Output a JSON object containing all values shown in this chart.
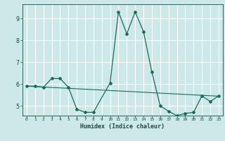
{
  "xlabel": "Humidex (Indice chaleur)",
  "bg_color": "#cce8e8",
  "grid_color": "#ffffff",
  "line_color": "#1a6b5a",
  "xlim": [
    -0.5,
    23.5
  ],
  "ylim": [
    4.55,
    9.65
  ],
  "yticks": [
    5,
    6,
    7,
    8,
    9
  ],
  "xticks": [
    0,
    1,
    2,
    3,
    4,
    5,
    6,
    7,
    8,
    9,
    10,
    11,
    12,
    13,
    14,
    15,
    16,
    17,
    18,
    19,
    20,
    21,
    22,
    23
  ],
  "xtick_labels": [
    "0",
    "1",
    "2",
    "3",
    "4",
    "5",
    "6",
    "7",
    "8",
    "9",
    "10",
    "11",
    "12",
    "13",
    "14",
    "15",
    "16",
    "17",
    "18",
    "19",
    "20",
    "21",
    "22",
    "23"
  ],
  "line1_x": [
    0,
    1,
    2,
    3,
    4,
    5,
    6,
    7,
    8,
    10,
    11,
    12,
    13,
    14,
    15,
    16,
    17,
    18,
    19,
    20,
    21,
    22,
    23
  ],
  "line1_y": [
    5.9,
    5.9,
    5.85,
    6.25,
    6.25,
    5.85,
    4.85,
    4.7,
    4.7,
    6.05,
    9.3,
    8.3,
    9.3,
    8.4,
    6.55,
    5.0,
    4.75,
    4.55,
    4.65,
    4.7,
    5.45,
    5.2,
    5.45
  ],
  "line2_x": [
    0,
    1,
    2,
    3,
    4,
    5,
    6,
    7,
    8,
    9,
    10,
    11,
    12,
    13,
    14,
    15,
    16,
    17,
    18,
    19,
    20,
    21,
    22,
    23
  ],
  "line2_y": [
    5.9,
    5.88,
    5.86,
    5.84,
    5.82,
    5.8,
    5.78,
    5.76,
    5.74,
    5.72,
    5.7,
    5.68,
    5.66,
    5.64,
    5.62,
    5.6,
    5.58,
    5.56,
    5.54,
    5.52,
    5.5,
    5.48,
    5.46,
    5.44
  ]
}
